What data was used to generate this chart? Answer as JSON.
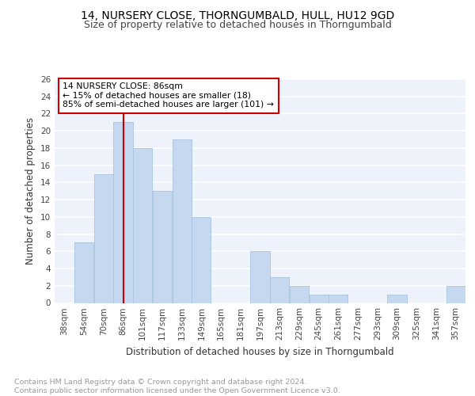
{
  "title": "14, NURSERY CLOSE, THORNGUMBALD, HULL, HU12 9GD",
  "subtitle": "Size of property relative to detached houses in Thorngumbald",
  "xlabel": "Distribution of detached houses by size in Thorngumbald",
  "ylabel": "Number of detached properties",
  "categories": [
    "38sqm",
    "54sqm",
    "70sqm",
    "86sqm",
    "101sqm",
    "117sqm",
    "133sqm",
    "149sqm",
    "165sqm",
    "181sqm",
    "197sqm",
    "213sqm",
    "229sqm",
    "245sqm",
    "261sqm",
    "277sqm",
    "293sqm",
    "309sqm",
    "325sqm",
    "341sqm",
    "357sqm"
  ],
  "values": [
    0,
    7,
    15,
    21,
    18,
    13,
    19,
    10,
    0,
    0,
    6,
    3,
    2,
    1,
    1,
    0,
    0,
    1,
    0,
    0,
    2
  ],
  "bar_color": "#c5d8f0",
  "bar_edge_color": "#a8c4e0",
  "vline_x_index": 3,
  "vline_color": "#cc0000",
  "annotation_text": "14 NURSERY CLOSE: 86sqm\n← 15% of detached houses are smaller (18)\n85% of semi-detached houses are larger (101) →",
  "annotation_box_color": "#ffffff",
  "annotation_box_edge_color": "#cc0000",
  "ylim": [
    0,
    26
  ],
  "yticks": [
    0,
    2,
    4,
    6,
    8,
    10,
    12,
    14,
    16,
    18,
    20,
    22,
    24,
    26
  ],
  "background_color": "#eef2fa",
  "footer_text": "Contains HM Land Registry data © Crown copyright and database right 2024.\nContains public sector information licensed under the Open Government Licence v3.0.",
  "title_fontsize": 10,
  "subtitle_fontsize": 9,
  "xlabel_fontsize": 8.5,
  "ylabel_fontsize": 8.5,
  "tick_fontsize": 7.5,
  "annotation_fontsize": 7.8,
  "footer_fontsize": 6.8
}
